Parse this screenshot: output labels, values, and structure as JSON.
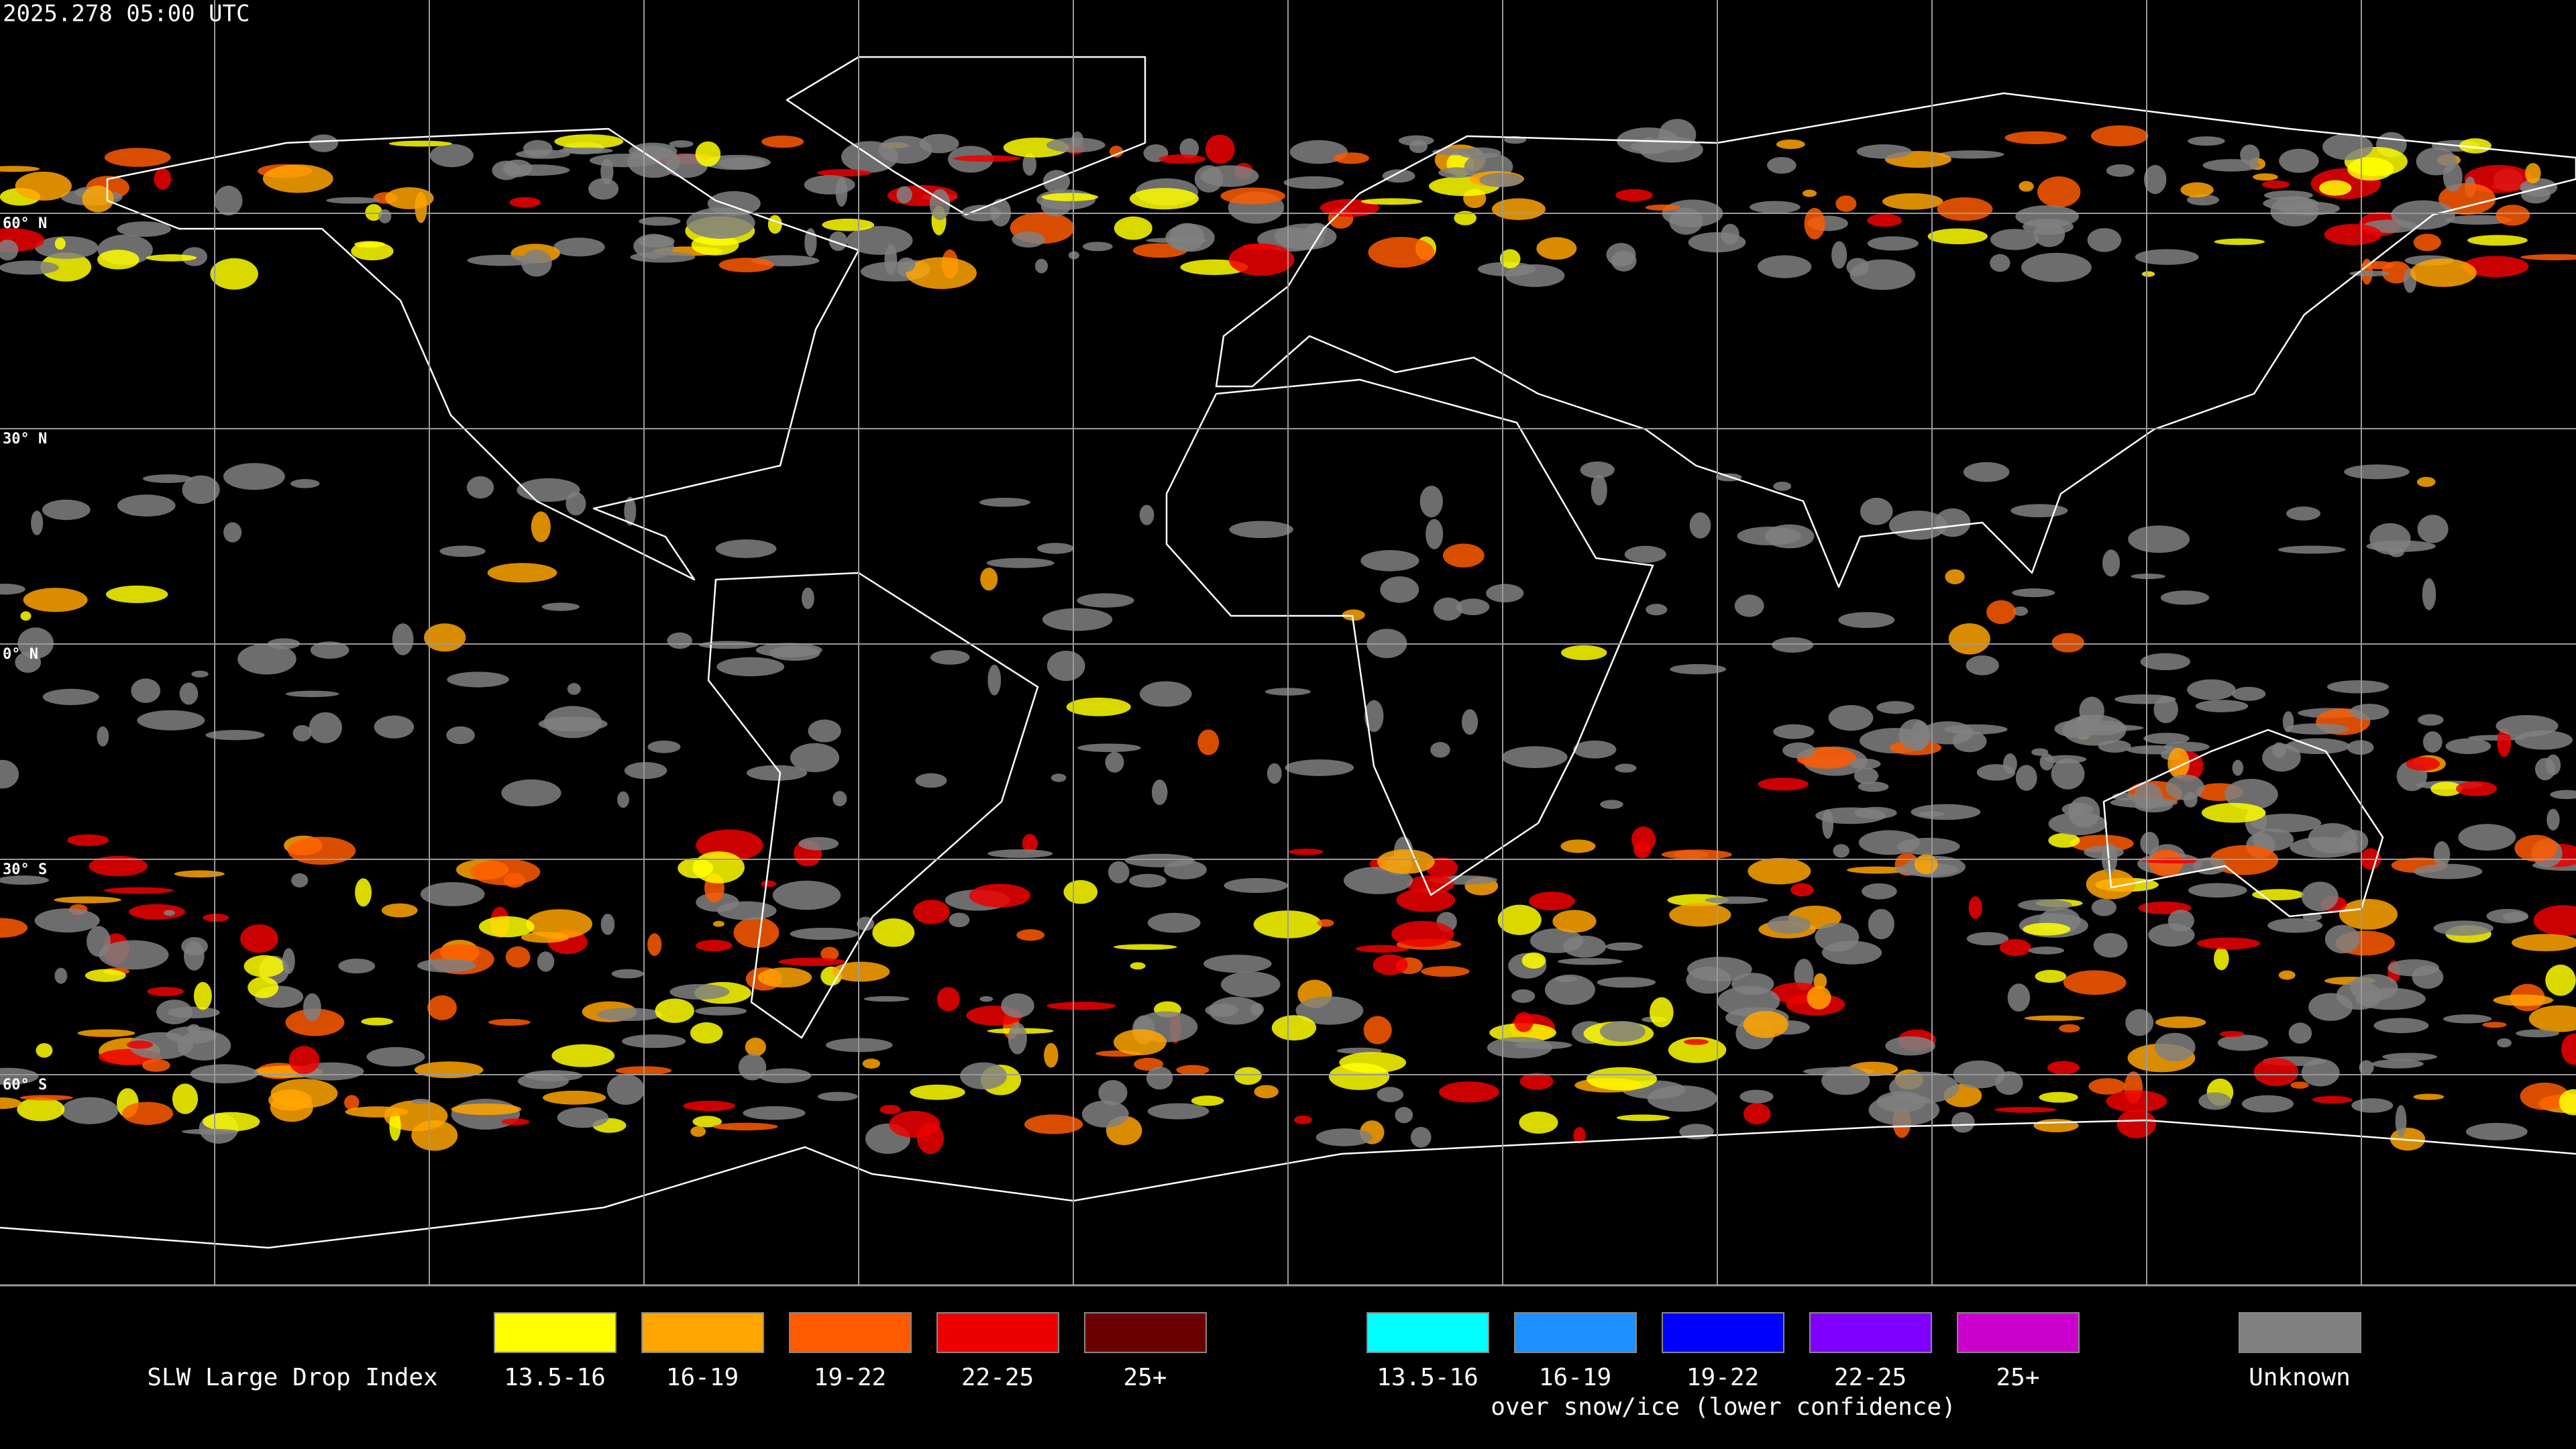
{
  "header": {
    "timestamp": "2025.278 05:00 UTC"
  },
  "map": {
    "lat_labels": [
      "60° N",
      "30° N",
      "0° N",
      "30° S",
      "60° S"
    ]
  },
  "legend": {
    "title": "SLW Large Drop Index",
    "groups": [
      {
        "items": [
          {
            "label": "13.5-16",
            "color": "#ffff00"
          },
          {
            "label": "16-19",
            "color": "#ffa500"
          },
          {
            "label": "19-22",
            "color": "#ff5a00"
          },
          {
            "label": "22-25",
            "color": "#ee0000"
          },
          {
            "label": "25+",
            "color": "#6b0000"
          }
        ]
      },
      {
        "caption": "over snow/ice (lower confidence)",
        "items": [
          {
            "label": "13.5-16",
            "color": "#00ffff"
          },
          {
            "label": "16-19",
            "color": "#1e90ff"
          },
          {
            "label": "19-22",
            "color": "#0000ff"
          },
          {
            "label": "22-25",
            "color": "#7f00ff"
          },
          {
            "label": "25+",
            "color": "#cc00cc"
          }
        ]
      }
    ],
    "unknown": {
      "label": "Unknown",
      "color": "#808080"
    }
  }
}
